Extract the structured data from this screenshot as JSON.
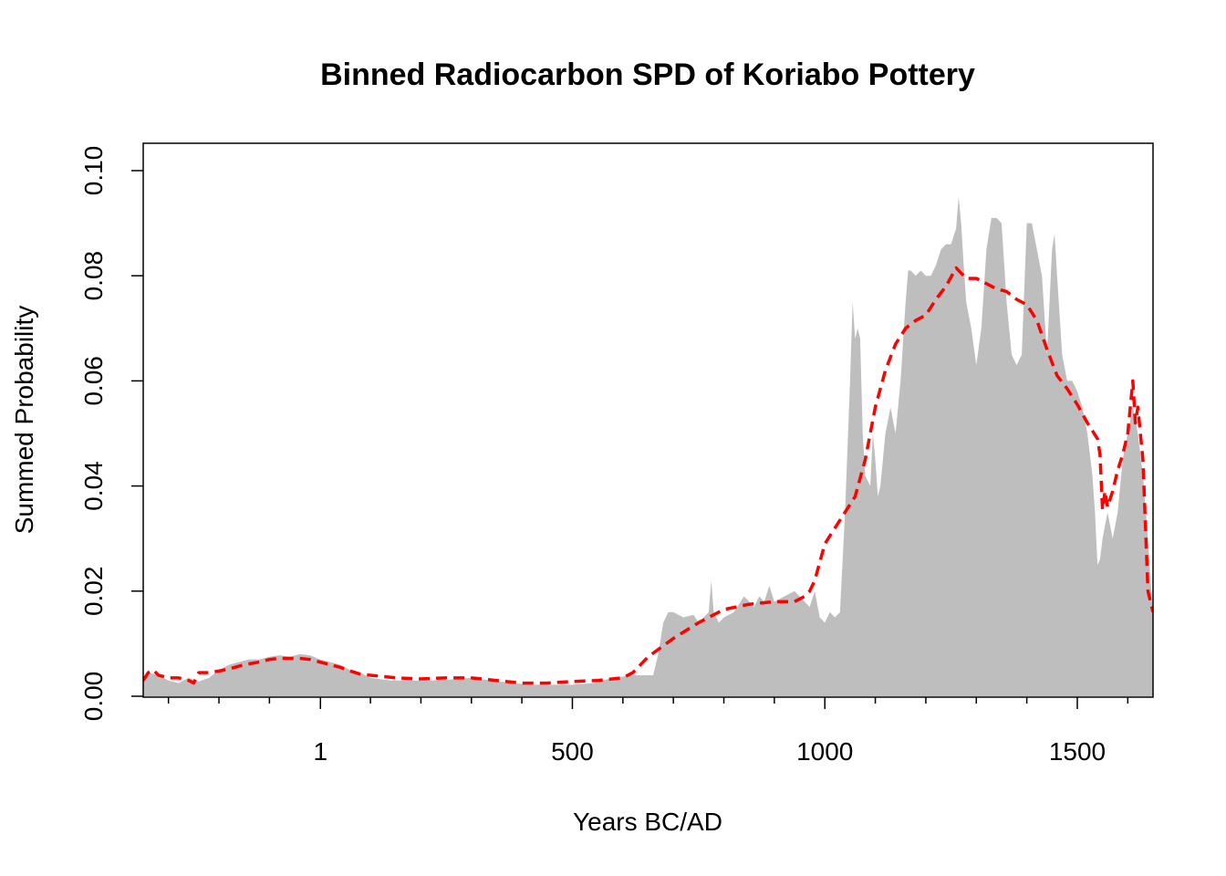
{
  "chart_data": {
    "type": "area",
    "title": "Binned Radiocarbon SPD of Koriabo Pottery",
    "xlabel": "Years BC/AD",
    "ylabel": "Summed Probability",
    "xlim": [
      -350,
      1650
    ],
    "ylim": [
      0,
      0.105
    ],
    "grid": false,
    "legend": "none",
    "x_ticks_major": [
      {
        "value": 1,
        "label": "1"
      },
      {
        "value": 500,
        "label": "500"
      },
      {
        "value": 1000,
        "label": "1000"
      },
      {
        "value": 1500,
        "label": "1500"
      }
    ],
    "x_ticks_minor": [
      -300,
      -200,
      -100,
      100,
      200,
      300,
      400,
      600,
      700,
      800,
      900,
      1100,
      1200,
      1300,
      1400,
      1600
    ],
    "y_ticks": [
      {
        "value": 0.0,
        "label": "0.00"
      },
      {
        "value": 0.02,
        "label": "0.02"
      },
      {
        "value": 0.04,
        "label": "0.04"
      },
      {
        "value": 0.06,
        "label": "0.06"
      },
      {
        "value": 0.08,
        "label": "0.08"
      },
      {
        "value": 0.1,
        "label": "0.10"
      }
    ],
    "series": [
      {
        "style": "filled-area",
        "color": "#bebebe",
        "x": [
          -350,
          -340,
          -320,
          -300,
          -280,
          -260,
          -240,
          -220,
          -200,
          -180,
          -160,
          -140,
          -120,
          -100,
          -80,
          -60,
          -40,
          -20,
          0,
          20,
          40,
          60,
          80,
          100,
          140,
          180,
          220,
          260,
          300,
          340,
          380,
          420,
          460,
          500,
          540,
          580,
          620,
          640,
          650,
          660,
          670,
          680,
          690,
          700,
          720,
          740,
          750,
          760,
          770,
          775,
          780,
          790,
          800,
          820,
          840,
          860,
          870,
          880,
          890,
          900,
          920,
          940,
          960,
          970,
          980,
          990,
          1000,
          1010,
          1020,
          1030,
          1040,
          1050,
          1055,
          1060,
          1065,
          1070,
          1075,
          1080,
          1090,
          1095,
          1100,
          1105,
          1110,
          1120,
          1130,
          1140,
          1150,
          1160,
          1165,
          1170,
          1180,
          1190,
          1200,
          1210,
          1220,
          1230,
          1240,
          1250,
          1260,
          1265,
          1270,
          1275,
          1280,
          1290,
          1300,
          1310,
          1320,
          1330,
          1340,
          1350,
          1360,
          1370,
          1380,
          1390,
          1400,
          1410,
          1420,
          1430,
          1440,
          1450,
          1455,
          1460,
          1470,
          1480,
          1490,
          1500,
          1510,
          1520,
          1530,
          1535,
          1540,
          1545,
          1550,
          1560,
          1570,
          1580,
          1590,
          1600,
          1610,
          1620,
          1630,
          1640,
          1650
        ],
        "y": [
          0.003,
          0.0045,
          0.004,
          0.003,
          0.0025,
          0.0035,
          0.0028,
          0.0035,
          0.005,
          0.006,
          0.0065,
          0.007,
          0.007,
          0.0075,
          0.0078,
          0.0075,
          0.008,
          0.0078,
          0.007,
          0.0065,
          0.006,
          0.005,
          0.0045,
          0.0035,
          0.003,
          0.003,
          0.003,
          0.0032,
          0.0035,
          0.003,
          0.0025,
          0.0022,
          0.0022,
          0.0022,
          0.0025,
          0.0035,
          0.004,
          0.004,
          0.004,
          0.004,
          0.008,
          0.014,
          0.016,
          0.016,
          0.015,
          0.0155,
          0.014,
          0.015,
          0.016,
          0.022,
          0.016,
          0.014,
          0.015,
          0.016,
          0.019,
          0.017,
          0.019,
          0.018,
          0.021,
          0.018,
          0.019,
          0.02,
          0.018,
          0.017,
          0.02,
          0.015,
          0.014,
          0.016,
          0.015,
          0.016,
          0.035,
          0.06,
          0.075,
          0.068,
          0.07,
          0.068,
          0.05,
          0.042,
          0.04,
          0.05,
          0.045,
          0.038,
          0.04,
          0.05,
          0.055,
          0.05,
          0.06,
          0.075,
          0.081,
          0.081,
          0.08,
          0.081,
          0.08,
          0.08,
          0.082,
          0.085,
          0.086,
          0.086,
          0.089,
          0.095,
          0.09,
          0.082,
          0.075,
          0.07,
          0.063,
          0.07,
          0.085,
          0.091,
          0.091,
          0.09,
          0.075,
          0.065,
          0.063,
          0.065,
          0.09,
          0.09,
          0.085,
          0.08,
          0.065,
          0.085,
          0.088,
          0.08,
          0.065,
          0.06,
          0.06,
          0.058,
          0.055,
          0.05,
          0.042,
          0.035,
          0.025,
          0.026,
          0.03,
          0.035,
          0.03,
          0.035,
          0.045,
          0.05,
          0.055,
          0.05,
          0.042,
          0.03,
          0.015
        ]
      },
      {
        "style": "dashed-line",
        "color": "#ff0000",
        "x": [
          -350,
          -340,
          -330,
          -320,
          -300,
          -280,
          -260,
          -250,
          -240,
          -220,
          -200,
          -180,
          -150,
          -120,
          -100,
          -80,
          -60,
          -40,
          -20,
          0,
          20,
          40,
          60,
          80,
          100,
          150,
          200,
          250,
          300,
          350,
          400,
          450,
          500,
          550,
          600,
          620,
          650,
          700,
          750,
          800,
          850,
          900,
          940,
          950,
          960,
          970,
          980,
          1000,
          1020,
          1040,
          1060,
          1080,
          1100,
          1120,
          1140,
          1160,
          1180,
          1200,
          1220,
          1240,
          1260,
          1270,
          1280,
          1300,
          1320,
          1340,
          1360,
          1380,
          1400,
          1420,
          1440,
          1460,
          1480,
          1500,
          1520,
          1540,
          1545,
          1550,
          1555,
          1560,
          1570,
          1580,
          1590,
          1600,
          1605,
          1610,
          1615,
          1620,
          1630,
          1640,
          1650
        ],
        "y": [
          0.003,
          0.0045,
          0.005,
          0.004,
          0.0035,
          0.0035,
          0.003,
          0.0025,
          0.0045,
          0.0045,
          0.0048,
          0.0052,
          0.006,
          0.0065,
          0.007,
          0.0072,
          0.0072,
          0.0072,
          0.007,
          0.0065,
          0.006,
          0.0055,
          0.0048,
          0.0042,
          0.004,
          0.0035,
          0.0033,
          0.0035,
          0.0035,
          0.003,
          0.0025,
          0.0025,
          0.0028,
          0.003,
          0.0035,
          0.0045,
          0.0075,
          0.011,
          0.014,
          0.0165,
          0.0175,
          0.018,
          0.018,
          0.0185,
          0.019,
          0.02,
          0.022,
          0.029,
          0.032,
          0.035,
          0.038,
          0.045,
          0.055,
          0.062,
          0.067,
          0.07,
          0.0715,
          0.0725,
          0.0755,
          0.078,
          0.0815,
          0.0805,
          0.0795,
          0.0795,
          0.0785,
          0.0775,
          0.077,
          0.0755,
          0.0745,
          0.0715,
          0.066,
          0.061,
          0.0585,
          0.0555,
          0.052,
          0.049,
          0.046,
          0.0355,
          0.039,
          0.036,
          0.039,
          0.043,
          0.046,
          0.05,
          0.055,
          0.06,
          0.052,
          0.055,
          0.045,
          0.02,
          0.016
        ]
      }
    ]
  }
}
